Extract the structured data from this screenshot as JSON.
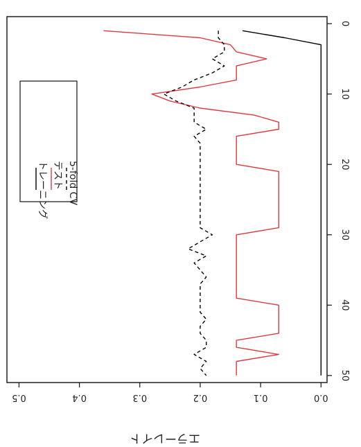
{
  "chart_data": {
    "type": "line",
    "ylabel": "エラーレイト",
    "xlabel": "",
    "xlim": [
      -1,
      51
    ],
    "ylim": [
      -0.01,
      0.52
    ],
    "x_ticks": [
      0,
      10,
      20,
      30,
      40,
      50
    ],
    "y_ticks": [
      0.0,
      0.1,
      0.2,
      0.3,
      0.4,
      0.5
    ],
    "x_tick_labels": [
      "0",
      "10",
      "20",
      "30",
      "40",
      "50"
    ],
    "y_tick_labels": [
      "0.0",
      "0.1",
      "0.2",
      "0.3",
      "0.4",
      "0.5"
    ],
    "orientation": "rotated 90 degrees clockwise",
    "grid": false,
    "legend_position": "top-left",
    "series": [
      {
        "name": "トレーニング",
        "color": "#000000",
        "dash": "solid",
        "x": [
          1,
          2,
          3,
          4,
          5,
          6,
          7,
          8,
          9,
          10,
          11,
          12,
          13,
          14,
          15,
          16,
          17,
          18,
          19,
          20,
          21,
          22,
          23,
          24,
          25,
          26,
          27,
          28,
          29,
          30,
          31,
          32,
          33,
          34,
          35,
          36,
          37,
          38,
          39,
          40,
          41,
          42,
          43,
          44,
          45,
          46,
          47,
          48,
          49,
          50
        ],
        "y": [
          0.13,
          0.06,
          0.0,
          0.0,
          0.0,
          0.0,
          0.0,
          0.0,
          0.0,
          0.0,
          0.0,
          0.0,
          0.0,
          0.0,
          0.0,
          0.0,
          0.0,
          0.0,
          0.0,
          0.0,
          0.0,
          0.0,
          0.0,
          0.0,
          0.0,
          0.0,
          0.0,
          0.0,
          0.0,
          0.0,
          0.0,
          0.0,
          0.0,
          0.0,
          0.0,
          0.0,
          0.0,
          0.0,
          0.0,
          0.0,
          0.0,
          0.0,
          0.0,
          0.0,
          0.0,
          0.0,
          0.0,
          0.0,
          0.0,
          0.0
        ]
      },
      {
        "name": "テスト",
        "color": "#e0393f",
        "dash": "solid",
        "x": [
          1,
          2,
          3,
          4,
          5,
          6,
          7,
          8,
          9,
          10,
          11,
          12,
          13,
          14,
          15,
          16,
          17,
          18,
          19,
          20,
          21,
          22,
          23,
          24,
          25,
          26,
          27,
          28,
          29,
          30,
          31,
          32,
          33,
          34,
          35,
          36,
          37,
          38,
          39,
          40,
          41,
          42,
          43,
          44,
          45,
          46,
          47,
          48,
          49,
          50
        ],
        "y": [
          0.36,
          0.2,
          0.15,
          0.14,
          0.09,
          0.14,
          0.14,
          0.14,
          0.2,
          0.28,
          0.25,
          0.2,
          0.11,
          0.07,
          0.07,
          0.14,
          0.14,
          0.14,
          0.14,
          0.14,
          0.07,
          0.07,
          0.07,
          0.07,
          0.07,
          0.07,
          0.07,
          0.07,
          0.07,
          0.14,
          0.14,
          0.14,
          0.14,
          0.14,
          0.14,
          0.14,
          0.14,
          0.14,
          0.14,
          0.07,
          0.07,
          0.07,
          0.07,
          0.07,
          0.14,
          0.14,
          0.07,
          0.14,
          0.14,
          0.14
        ]
      },
      {
        "name": "5-fold CV",
        "color": "#000000",
        "dash": "dashed",
        "x": [
          1,
          2,
          3,
          4,
          5,
          6,
          7,
          8,
          9,
          10,
          11,
          12,
          13,
          14,
          15,
          16,
          17,
          18,
          19,
          20,
          21,
          22,
          23,
          24,
          25,
          26,
          27,
          28,
          29,
          30,
          31,
          32,
          33,
          34,
          35,
          36,
          37,
          38,
          39,
          40,
          41,
          42,
          43,
          44,
          45,
          46,
          47,
          48,
          49,
          50
        ],
        "y": [
          0.17,
          0.17,
          0.16,
          0.16,
          0.18,
          0.16,
          0.18,
          0.21,
          0.23,
          0.26,
          0.24,
          0.21,
          0.21,
          0.21,
          0.19,
          0.21,
          0.2,
          0.2,
          0.2,
          0.2,
          0.2,
          0.2,
          0.2,
          0.2,
          0.2,
          0.2,
          0.2,
          0.2,
          0.2,
          0.18,
          0.2,
          0.22,
          0.19,
          0.21,
          0.2,
          0.19,
          0.2,
          0.2,
          0.2,
          0.2,
          0.2,
          0.19,
          0.2,
          0.2,
          0.19,
          0.19,
          0.21,
          0.19,
          0.2,
          0.19
        ]
      }
    ]
  }
}
